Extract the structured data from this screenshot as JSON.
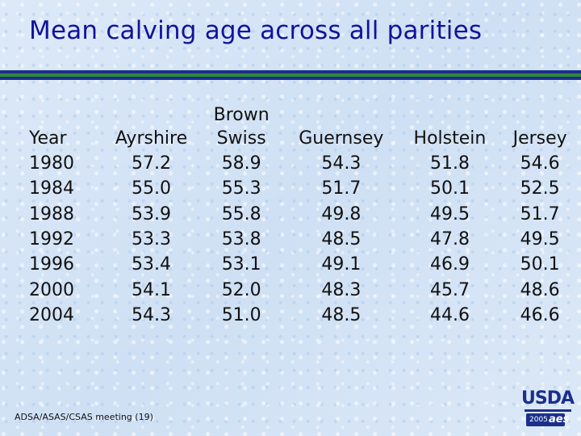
{
  "slide": {
    "title": "Mean calving age across all parities",
    "footer": "ADSA/ASAS/CSAS meeting (19)",
    "logo": {
      "org": "USDA",
      "year": "2005",
      "mark": "aes"
    }
  },
  "table": {
    "columns": [
      "Year",
      "Ayrshire",
      "Brown\nSwiss",
      "Guernsey",
      "Holstein",
      "Jersey"
    ],
    "rows": [
      [
        "1980",
        "57.2",
        "58.9",
        "54.3",
        "51.8",
        "54.6"
      ],
      [
        "1984",
        "55.0",
        "55.3",
        "51.7",
        "50.1",
        "52.5"
      ],
      [
        "1988",
        "53.9",
        "55.8",
        "49.8",
        "49.5",
        "51.7"
      ],
      [
        "1992",
        "53.3",
        "53.8",
        "48.5",
        "47.8",
        "49.5"
      ],
      [
        "1996",
        "53.4",
        "53.1",
        "49.1",
        "46.9",
        "50.1"
      ],
      [
        "2000",
        "54.1",
        "52.0",
        "48.3",
        "45.7",
        "48.6"
      ],
      [
        "2004",
        "54.3",
        "51.0",
        "48.5",
        "44.6",
        "46.6"
      ]
    ]
  },
  "colors": {
    "title": "#13129a",
    "band_blue": "#1b2f8a",
    "band_green": "#2f8a3a",
    "background": "#d6e6f7"
  }
}
